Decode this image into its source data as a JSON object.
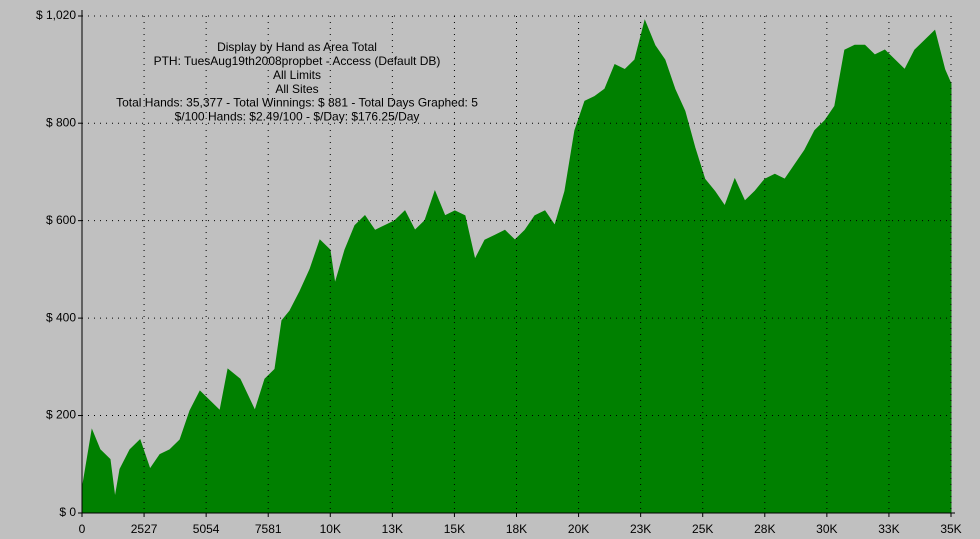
{
  "chart_data": {
    "type": "area",
    "title": "Display by Hand as Area Total",
    "subtitle_lines": [
      "PTH: TuesAug19th2008propbet - Access (Default DB)",
      "All Limits",
      "All Sites",
      "Total Hands: 35,377 - Total Winnings: $ 881 - Total Days Graphed: 5",
      "$/100 Hands: $2.49/100 - $/Day: $176.25/Day"
    ],
    "color": "#008000",
    "background": "#c0c0c0",
    "grid": true,
    "xlim": [
      0,
      35378
    ],
    "ylim": [
      0,
      1020
    ],
    "xticks": [
      0,
      2527,
      5054,
      7581,
      {
        "value": 10108,
        "label": "10K"
      },
      {
        "value": 12635,
        "label": "13K"
      },
      {
        "value": 15162,
        "label": "15K"
      },
      {
        "value": 17689,
        "label": "18K"
      },
      {
        "value": 20216,
        "label": "20K"
      },
      {
        "value": 22743,
        "label": "23K"
      },
      {
        "value": 25270,
        "label": "25K"
      },
      {
        "value": 27797,
        "label": "28K"
      },
      {
        "value": 30324,
        "label": "30K"
      },
      {
        "value": 32851,
        "label": "33K"
      },
      {
        "value": 35378,
        "label": "35K"
      }
    ],
    "yticks": [
      {
        "value": 0,
        "label": "$ 0"
      },
      {
        "value": 200,
        "label": "$ 200"
      },
      {
        "value": 400,
        "label": "$ 400"
      },
      {
        "value": 600,
        "label": "$ 600"
      },
      {
        "value": 800,
        "label": "$ 800"
      },
      {
        "value": 1020,
        "label": "$ 1,020"
      }
    ],
    "x": [
      0,
      407,
      733,
      1140,
      1343,
      1547,
      1954,
      2361,
      2767,
      3175,
      3582,
      3989,
      4396,
      4803,
      5210,
      5617,
      5942,
      6431,
      7041,
      7448,
      7855,
      8140,
      8466,
      8873,
      9280,
      9687,
      10094,
      10297,
      10704,
      11111,
      11518,
      11925,
      12332,
      12739,
      13146,
      13553,
      13960,
      14367,
      14774,
      15181,
      15588,
      15995,
      16402,
      16809,
      17216,
      17623,
      18030,
      18437,
      18844,
      19251,
      19658,
      20065,
      20472,
      20879,
      21286,
      21693,
      22100,
      22507,
      22914,
      23321,
      23728,
      24135,
      24542,
      24949,
      25356,
      25763,
      26170,
      26577,
      26984,
      27391,
      27798,
      28205,
      28612,
      29019,
      29426,
      29833,
      30240,
      30647,
      31054,
      31461,
      31868,
      32275,
      32682,
      33089,
      33496,
      33903,
      34310,
      34717,
      35124,
      35377
    ],
    "values": [
      47,
      170,
      130,
      110,
      30,
      90,
      130,
      150,
      90,
      120,
      130,
      150,
      210,
      250,
      230,
      210,
      295,
      275,
      210,
      275,
      295,
      395,
      415,
      455,
      500,
      560,
      540,
      470,
      540,
      590,
      610,
      580,
      590,
      600,
      620,
      580,
      600,
      660,
      610,
      620,
      610,
      520,
      560,
      570,
      580,
      560,
      580,
      610,
      620,
      590,
      660,
      785,
      845,
      855,
      870,
      920,
      910,
      930,
      1010,
      960,
      930,
      870,
      825,
      750,
      685,
      660,
      630,
      685,
      640,
      660,
      685,
      695,
      685,
      715,
      745,
      785,
      805,
      835,
      950,
      960,
      960,
      940,
      950,
      930,
      910,
      950,
      970,
      990,
      910,
      881
    ]
  }
}
